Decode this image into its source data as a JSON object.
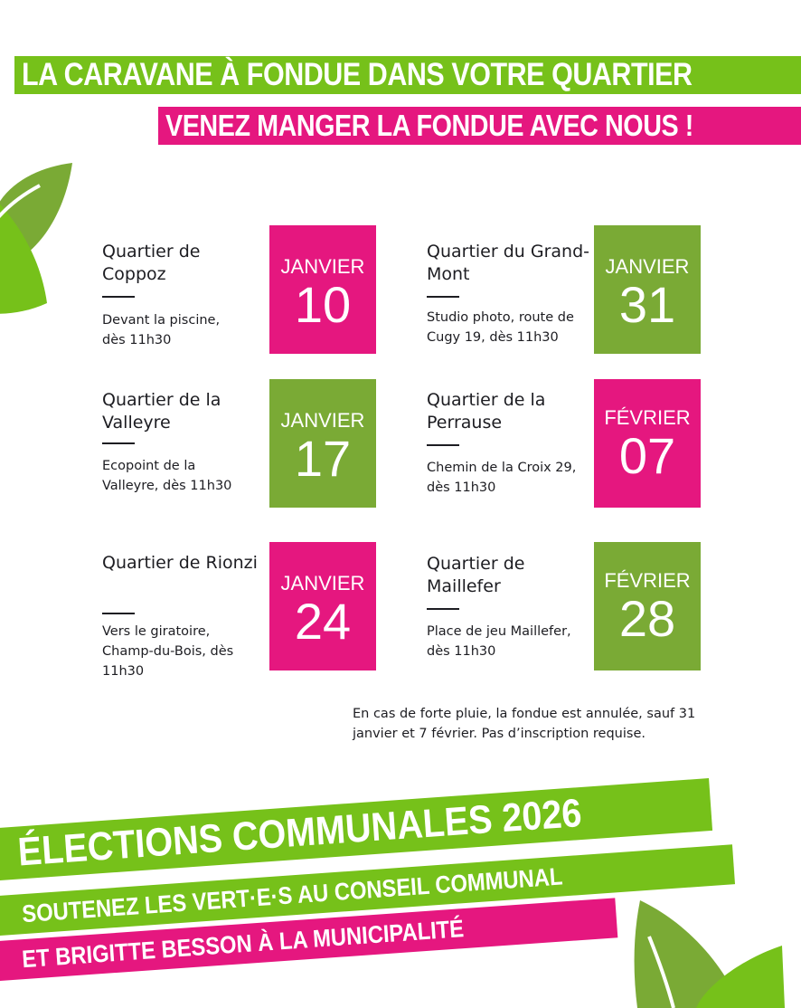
{
  "header": {
    "title": "LA CARAVANE À FONDUE DANS VOTRE QUARTIER",
    "subtitle": "VENEZ MANGER LA FONDUE AVEC NOUS !"
  },
  "events": [
    {
      "title": "Quartier de Coppoz",
      "desc": "Devant la piscine, dès 11h30",
      "month": "JANVIER",
      "day": "10",
      "color": "#e5177f"
    },
    {
      "title": "Quartier du Grand-Mont",
      "desc": "Studio photo, route de Cugy 19, dès 11h30",
      "month": "JANVIER",
      "day": "31",
      "color": "#7aaa35"
    },
    {
      "title": "Quartier de la Valleyre",
      "desc": "Ecopoint de la Valleyre, dès 11h30",
      "month": "JANVIER",
      "day": "17",
      "color": "#7aaa35"
    },
    {
      "title": "Quartier de la Perrause",
      "desc": "Chemin de la Croix 29, dès 11h30",
      "month": "FÉVRIER",
      "day": "07",
      "color": "#e5177f"
    },
    {
      "title": "Quartier de Rionzi",
      "desc": "Vers le giratoire, Champ-du-Bois, dès 11h30",
      "month": "JANVIER",
      "day": "24",
      "color": "#e5177f"
    },
    {
      "title": "Quartier de Maillefer",
      "desc": "Place de jeu Maillefer, dès 11h30",
      "month": "FÉVRIER",
      "day": "28",
      "color": "#7aaa35"
    }
  ],
  "note": "En cas de forte pluie, la fondue est annulée, sauf 31 janvier et 7 février. Pas d’inscription requise.",
  "footer": {
    "line1": "ÉLECTIONS COMMUNALES 2026",
    "line2": "SOUTENEZ LES VERT·E·S AU CONSEIL COMMUNAL",
    "line3": "ET BRIGITTE BESSON À LA MUNICIPALITÉ"
  },
  "colors": {
    "green": "#76c11a",
    "olive": "#7aaa35",
    "pink": "#e5177f"
  },
  "icons": [
    "leaf-icon"
  ]
}
